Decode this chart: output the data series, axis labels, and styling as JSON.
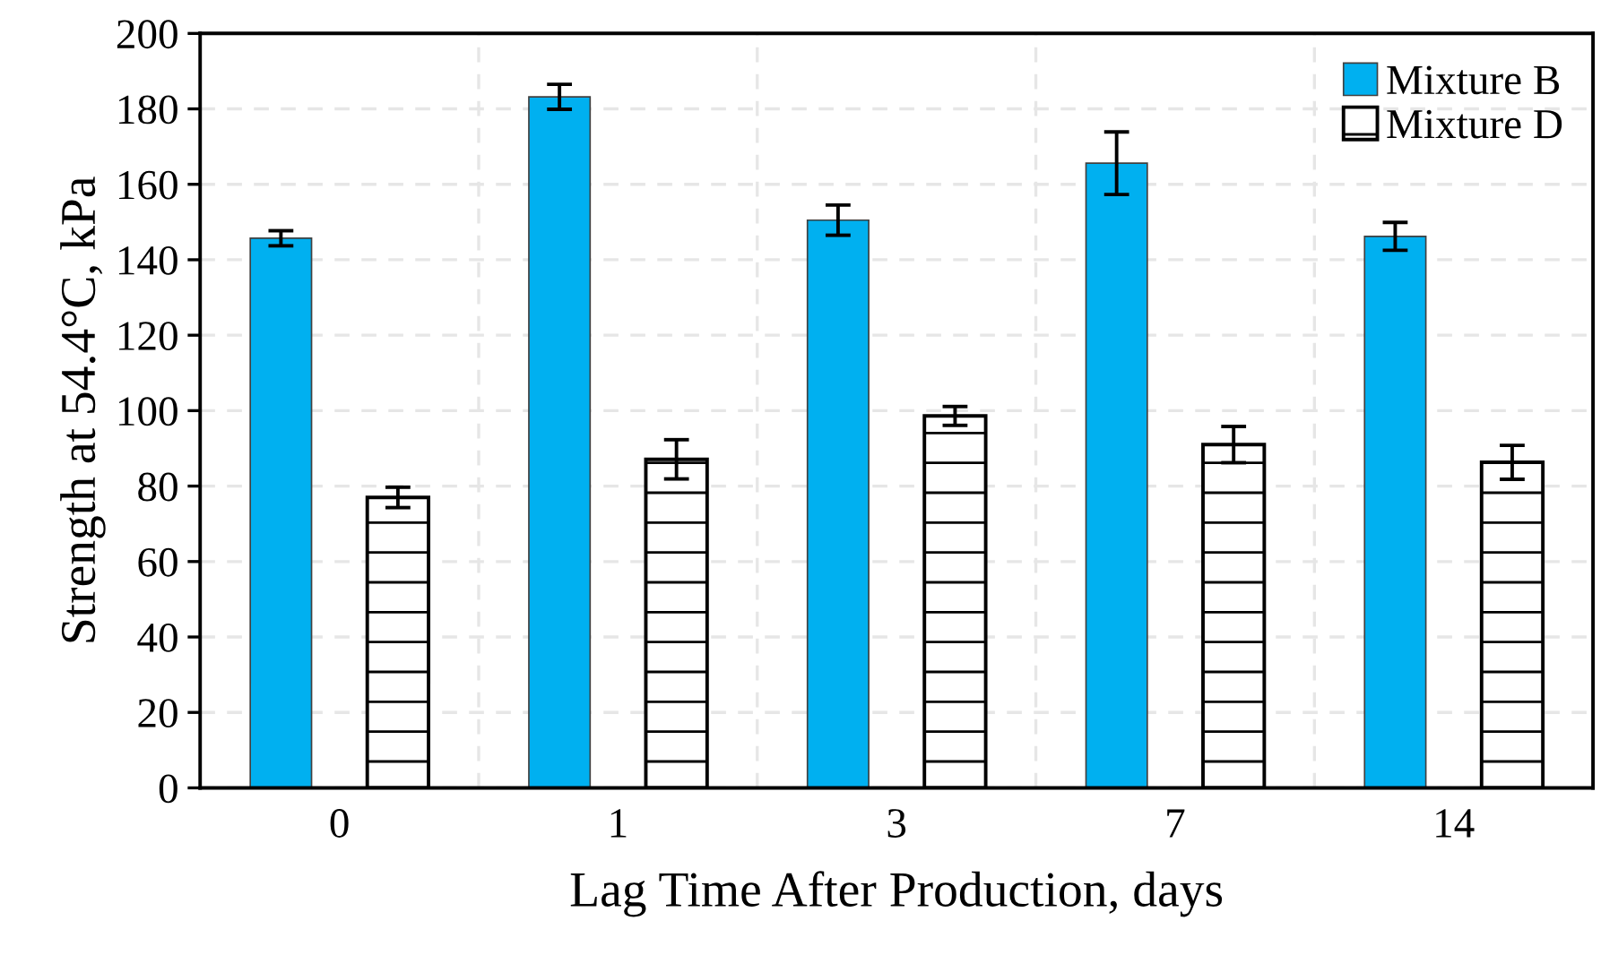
{
  "chart_data": {
    "type": "bar",
    "xlabel": "Lag Time After Production, days",
    "ylabel": "Strength at 54.4°C, kPa",
    "categories": [
      "0",
      "1",
      "3",
      "7",
      "14"
    ],
    "series": [
      {
        "name": "Mixture B",
        "color": "#00b0f0",
        "values": [
          145.7,
          183.2,
          150.5,
          165.6,
          146.2
        ],
        "errors": [
          2,
          3.3,
          4,
          8.3,
          3.7
        ]
      },
      {
        "name": "Mixture D",
        "color": "#000000",
        "values": [
          77.0,
          87.1,
          98.6,
          91.0,
          86.3
        ],
        "errors": [
          2.7,
          5.2,
          2.5,
          4.8,
          4.5
        ]
      }
    ],
    "ylim": [
      0,
      200
    ],
    "yticks": [
      0,
      20,
      40,
      60,
      80,
      100,
      120,
      140,
      160,
      180,
      200
    ],
    "grid": true,
    "legend": "top right"
  }
}
